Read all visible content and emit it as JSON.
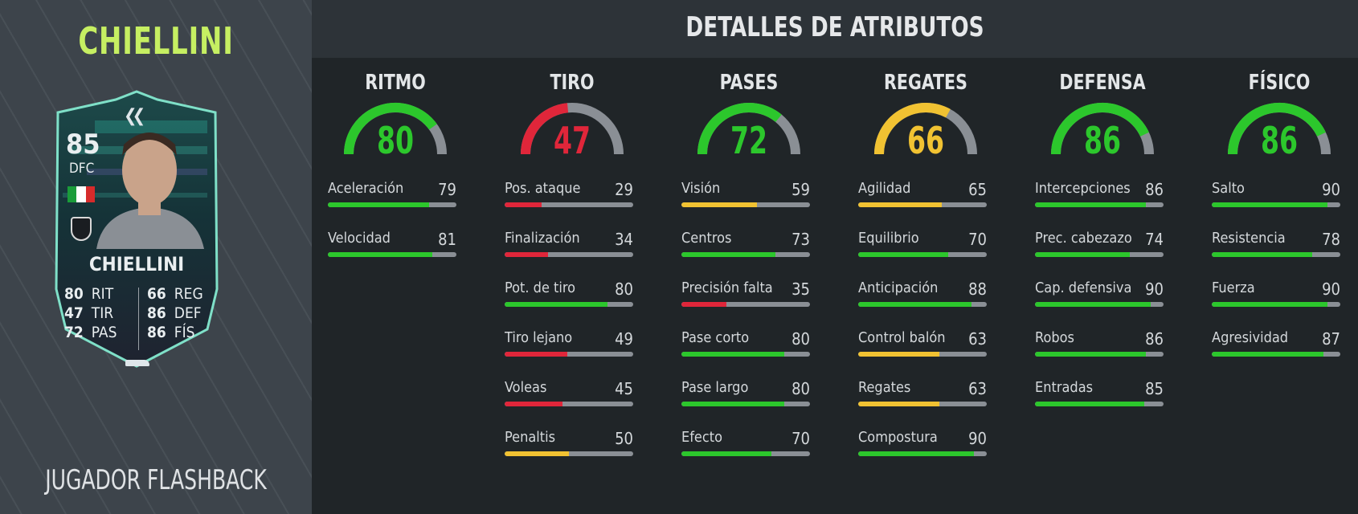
{
  "header": {
    "title": "DETALLES DE ATRIBUTOS"
  },
  "player": {
    "title": "CHIELLINI",
    "footer": "JUGADOR FLASHBACK"
  },
  "card": {
    "rating": "85",
    "position": "DFC",
    "name": "CHIELLINI",
    "nation_flag": [
      "#1a9c3a",
      "#ffffff",
      "#d62b2b"
    ],
    "stats": [
      {
        "value": "80",
        "label": "RIT"
      },
      {
        "value": "66",
        "label": "REG"
      },
      {
        "value": "47",
        "label": "TIR"
      },
      {
        "value": "86",
        "label": "DEF"
      },
      {
        "value": "72",
        "label": "PAS"
      },
      {
        "value": "86",
        "label": "FÍS"
      }
    ]
  },
  "colors": {
    "high": "#2cc72c",
    "mid": "#f1c232",
    "low": "#e0263a",
    "track": "#8a8f95"
  },
  "categories": [
    {
      "title": "RITMO",
      "value": "80",
      "level": "high",
      "stats": [
        {
          "name": "Aceleración",
          "value": "79"
        },
        {
          "name": "Velocidad",
          "value": "81"
        }
      ]
    },
    {
      "title": "TIRO",
      "value": "47",
      "level": "low",
      "stats": [
        {
          "name": "Pos. ataque",
          "value": "29"
        },
        {
          "name": "Finalización",
          "value": "34"
        },
        {
          "name": "Pot. de tiro",
          "value": "80"
        },
        {
          "name": "Tiro lejano",
          "value": "49"
        },
        {
          "name": "Voleas",
          "value": "45"
        },
        {
          "name": "Penaltis",
          "value": "50"
        }
      ]
    },
    {
      "title": "PASES",
      "value": "72",
      "level": "high",
      "stats": [
        {
          "name": "Visión",
          "value": "59"
        },
        {
          "name": "Centros",
          "value": "73"
        },
        {
          "name": "Precisión falta",
          "value": "35"
        },
        {
          "name": "Pase corto",
          "value": "80"
        },
        {
          "name": "Pase largo",
          "value": "80"
        },
        {
          "name": "Efecto",
          "value": "70"
        }
      ]
    },
    {
      "title": "REGATES",
      "value": "66",
      "level": "mid",
      "stats": [
        {
          "name": "Agilidad",
          "value": "65"
        },
        {
          "name": "Equilibrio",
          "value": "70"
        },
        {
          "name": "Anticipación",
          "value": "88"
        },
        {
          "name": "Control balón",
          "value": "63"
        },
        {
          "name": "Regates",
          "value": "63"
        },
        {
          "name": "Compostura",
          "value": "90"
        }
      ]
    },
    {
      "title": "DEFENSA",
      "value": "86",
      "level": "high",
      "stats": [
        {
          "name": "Intercepciones",
          "value": "86"
        },
        {
          "name": "Prec. cabezazo",
          "value": "74"
        },
        {
          "name": "Cap. defensiva",
          "value": "90"
        },
        {
          "name": "Robos",
          "value": "86"
        },
        {
          "name": "Entradas",
          "value": "85"
        }
      ]
    },
    {
      "title": "FÍSICO",
      "value": "86",
      "level": "high",
      "stats": [
        {
          "name": "Salto",
          "value": "90"
        },
        {
          "name": "Resistencia",
          "value": "78"
        },
        {
          "name": "Fuerza",
          "value": "90"
        },
        {
          "name": "Agresividad",
          "value": "87"
        }
      ]
    }
  ]
}
